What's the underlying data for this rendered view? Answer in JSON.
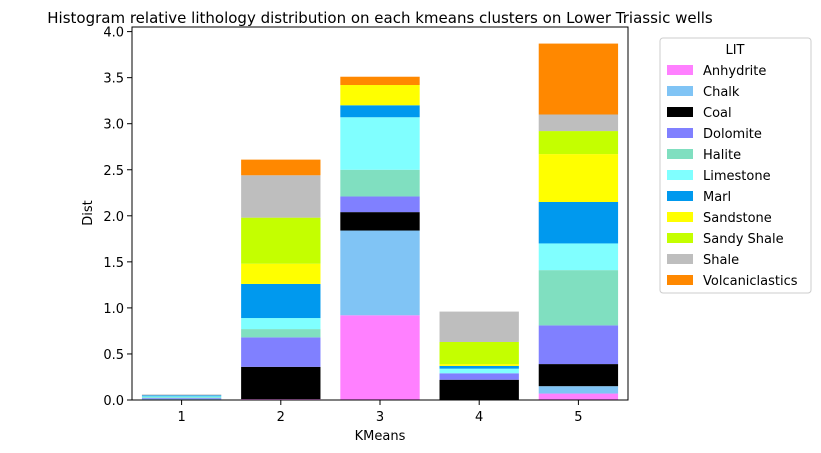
{
  "chart_data": {
    "type": "bar",
    "stacked": true,
    "title": "Histogram relative lithology distribution on each kmeans clusters on Lower Triassic wells",
    "xlabel": "KMeans",
    "ylabel": "Dist",
    "categories": [
      "1",
      "2",
      "3",
      "4",
      "5"
    ],
    "ylim": [
      0,
      4.05
    ],
    "yticks": [
      "0.0",
      "0.5",
      "1.0",
      "1.5",
      "2.0",
      "2.5",
      "3.0",
      "3.5",
      "4.0"
    ],
    "grid": false,
    "legend": {
      "title": "LIT",
      "placement": "outside right"
    },
    "series": [
      {
        "name": "Anhydrite",
        "color": "#ff80ff",
        "values": [
          0.0,
          0.01,
          0.92,
          0.0,
          0.07
        ]
      },
      {
        "name": "Chalk",
        "color": "#80c4f5",
        "values": [
          0.01,
          0.0,
          0.92,
          0.0,
          0.08
        ]
      },
      {
        "name": "Coal",
        "color": "#000000",
        "values": [
          0.0,
          0.35,
          0.2,
          0.22,
          0.24
        ]
      },
      {
        "name": "Dolomite",
        "color": "#8080ff",
        "values": [
          0.01,
          0.32,
          0.17,
          0.07,
          0.42
        ]
      },
      {
        "name": "Halite",
        "color": "#80dfc0",
        "values": [
          0.01,
          0.09,
          0.29,
          0.0,
          0.6
        ]
      },
      {
        "name": "Limestone",
        "color": "#80ffff",
        "values": [
          0.01,
          0.12,
          0.57,
          0.05,
          0.29
        ]
      },
      {
        "name": "Marl",
        "color": "#0099ee",
        "values": [
          0.01,
          0.37,
          0.13,
          0.03,
          0.45
        ]
      },
      {
        "name": "Sandstone",
        "color": "#ffff00",
        "values": [
          0.0,
          0.22,
          0.22,
          0.02,
          0.52
        ]
      },
      {
        "name": "Sandy Shale",
        "color": "#c4ff00",
        "values": [
          0.0,
          0.5,
          0.0,
          0.24,
          0.25
        ]
      },
      {
        "name": "Shale",
        "color": "#bebebe",
        "values": [
          0.01,
          0.46,
          0.0,
          0.33,
          0.18
        ]
      },
      {
        "name": "Volcaniclastics",
        "color": "#ff8800",
        "values": [
          0.0,
          0.17,
          0.09,
          0.0,
          0.77
        ]
      }
    ]
  }
}
